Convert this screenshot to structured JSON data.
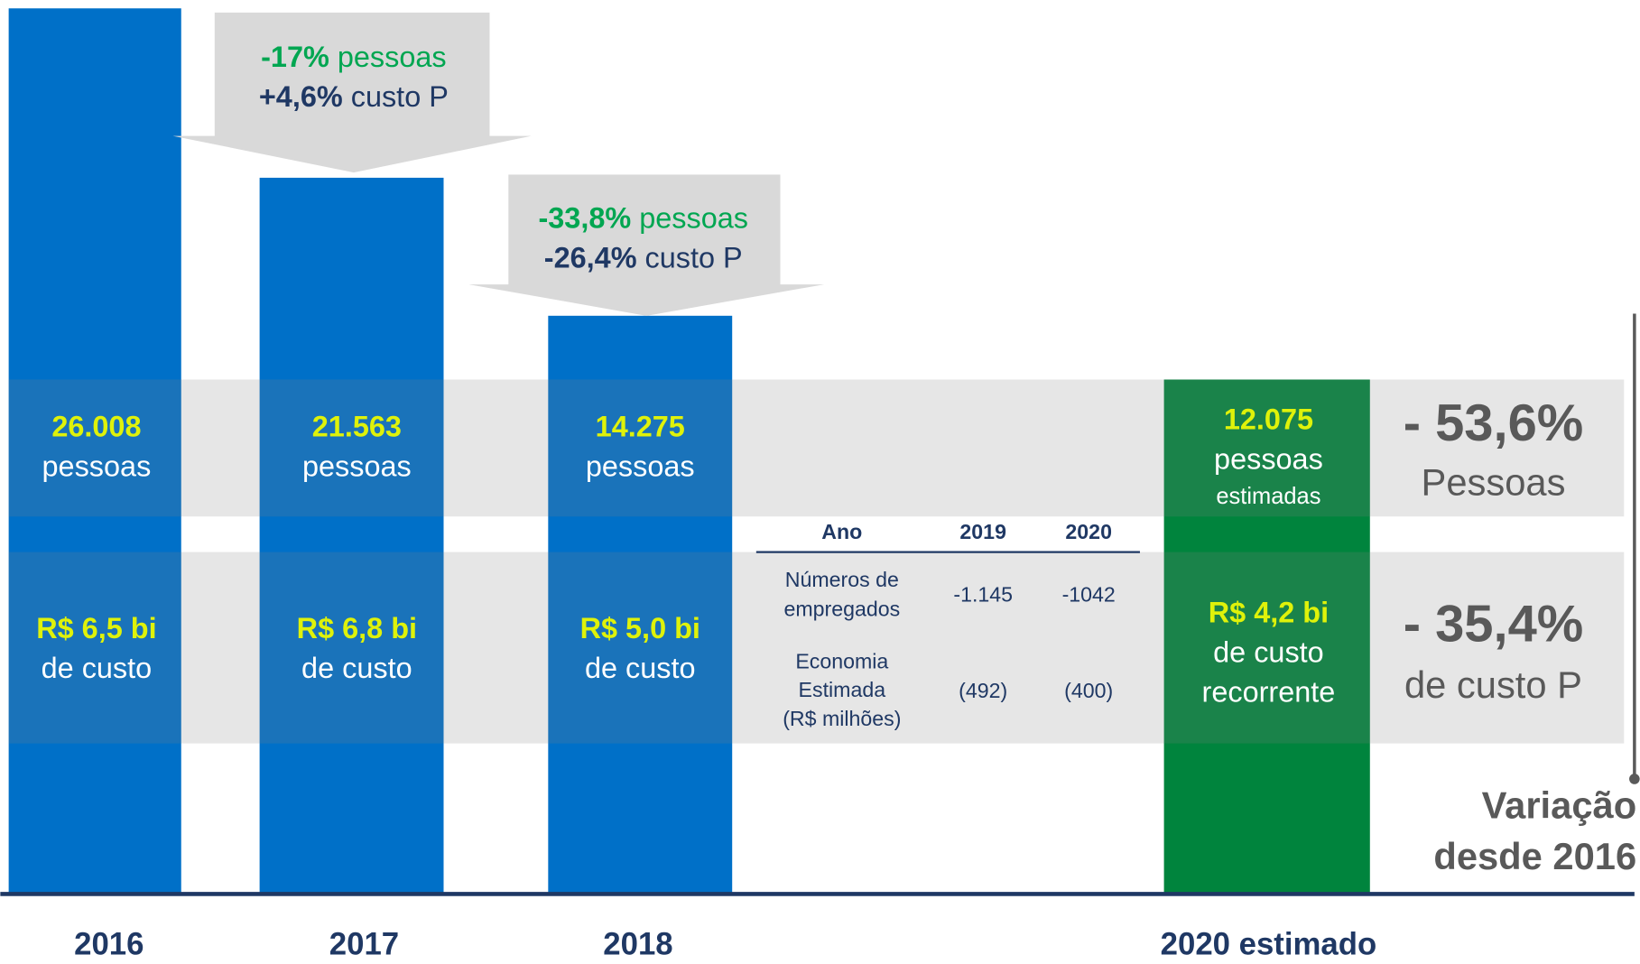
{
  "columns": [
    {
      "year": "2016",
      "people": "26.008",
      "people_label": "pessoas",
      "cost": "R$ 6,5 bi",
      "cost_label": "de custo"
    },
    {
      "year": "2017",
      "people": "21.563",
      "people_label": "pessoas",
      "cost": "R$ 6,8 bi",
      "cost_label": "de custo"
    },
    {
      "year": "2018",
      "people": "14.275",
      "people_label": "pessoas",
      "cost": "R$ 5,0 bi",
      "cost_label": "de custo"
    }
  ],
  "arrows": [
    {
      "people_change": "-17%",
      "people_text": "pessoas",
      "cost_change": "+4,6%",
      "cost_text": "custo P"
    },
    {
      "people_change": "-33,8%",
      "people_text": "pessoas",
      "cost_change": "-26,4%",
      "cost_text": "custo P"
    }
  ],
  "estimate": {
    "year": "2020 estimado",
    "people": "12.075",
    "people_label": "pessoas",
    "people_note": "estimadas",
    "cost": "R$ 4,2 bi",
    "cost_label": "de custo",
    "cost_note": "recorrente"
  },
  "variation": {
    "people": "- 53,6%",
    "people_label": "Pessoas",
    "cost": "- 35,4%",
    "cost_label": "de custo P",
    "caption": [
      "Variação",
      "desde 2016"
    ]
  },
  "table": {
    "header": [
      "Ano",
      "2019",
      "2020"
    ],
    "rows": [
      {
        "label": [
          "Números de",
          "empregados"
        ],
        "values": [
          "-1.145",
          "-1042"
        ]
      },
      {
        "label": [
          "Economia",
          "Estimada",
          "(R$ milhões)"
        ],
        "values": [
          "(492)",
          "(400)"
        ]
      }
    ]
  }
}
